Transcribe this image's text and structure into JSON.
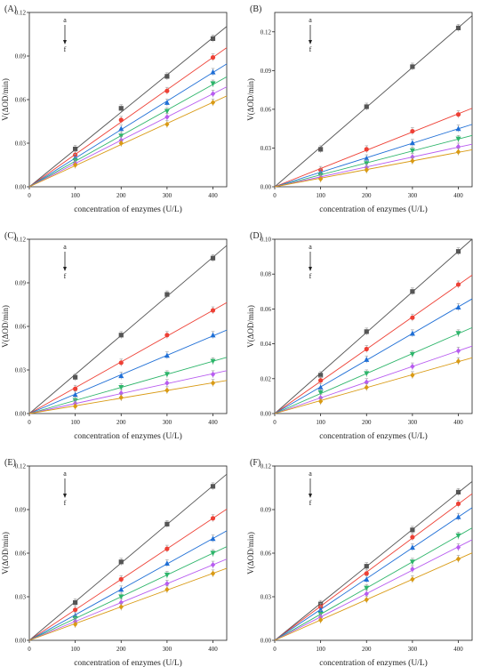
{
  "figure": {
    "colors": [
      "#555555",
      "#ee4035",
      "#1f6fd6",
      "#2db56a",
      "#b85cf0",
      "#d99a14"
    ],
    "marker_shapes": [
      "square",
      "circle",
      "triangle-up",
      "triangle-down",
      "diamond",
      "diamond"
    ]
  },
  "chart_data": [
    {
      "panel_label": "(A)",
      "type": "line",
      "xlabel": "concentration  of  enzymes  (U/L)",
      "ylabel": "V(ΔOD/min)",
      "xlim": [
        0,
        430
      ],
      "ylim": [
        0,
        0.12
      ],
      "xticks": [
        0,
        100,
        200,
        300,
        400
      ],
      "xtick_labels": [
        "0",
        "100",
        "200",
        "300",
        "400"
      ],
      "yticks": [
        0,
        0.03,
        0.06,
        0.09,
        0.12
      ],
      "ytick_labels": [
        "0.00",
        "0.03",
        "0.06",
        "0.09",
        "0.12"
      ],
      "annotation": {
        "top": "a",
        "bottom": "f"
      },
      "x": [
        100,
        200,
        300,
        400
      ],
      "series": [
        {
          "values": [
            0.026,
            0.054,
            0.076,
            0.102
          ]
        },
        {
          "values": [
            0.022,
            0.046,
            0.066,
            0.089
          ]
        },
        {
          "values": [
            0.02,
            0.04,
            0.058,
            0.079
          ]
        },
        {
          "values": [
            0.018,
            0.035,
            0.052,
            0.071
          ]
        },
        {
          "values": [
            0.016,
            0.032,
            0.048,
            0.064
          ]
        },
        {
          "values": [
            0.015,
            0.03,
            0.043,
            0.058
          ]
        }
      ]
    },
    {
      "panel_label": "(B)",
      "type": "line",
      "xlabel": "concentration  of  enzymes  (U/L)",
      "ylabel": "V(ΔOD/min)",
      "xlim": [
        0,
        430
      ],
      "ylim": [
        0,
        0.135
      ],
      "xticks": [
        0,
        100,
        200,
        300,
        400
      ],
      "xtick_labels": [
        "0",
        "100",
        "200",
        "300",
        "400"
      ],
      "yticks": [
        0,
        0.03,
        0.06,
        0.09,
        0.12
      ],
      "ytick_labels": [
        "0.00",
        "0.03",
        "0.06",
        "0.09",
        "0.12"
      ],
      "annotation": {
        "top": "a",
        "bottom": "f"
      },
      "x": [
        100,
        200,
        300,
        400
      ],
      "series": [
        {
          "values": [
            0.029,
            0.062,
            0.093,
            0.123
          ]
        },
        {
          "values": [
            0.013,
            0.029,
            0.043,
            0.056
          ]
        },
        {
          "values": [
            0.011,
            0.022,
            0.034,
            0.045
          ]
        },
        {
          "values": [
            0.009,
            0.018,
            0.028,
            0.037
          ]
        },
        {
          "values": [
            0.007,
            0.015,
            0.023,
            0.031
          ]
        },
        {
          "values": [
            0.006,
            0.013,
            0.02,
            0.027
          ]
        }
      ]
    },
    {
      "panel_label": "(C)",
      "type": "line",
      "xlabel": "concentration  of  enzymes  (U/L)",
      "ylabel": "V(ΔOD/min)",
      "xlim": [
        0,
        430
      ],
      "ylim": [
        0,
        0.12
      ],
      "xticks": [
        0,
        100,
        200,
        300,
        400
      ],
      "xtick_labels": [
        "0",
        "100",
        "200",
        "300",
        "400"
      ],
      "yticks": [
        0,
        0.03,
        0.06,
        0.09,
        0.12
      ],
      "ytick_labels": [
        "0.00",
        "0.03",
        "0.06",
        "0.09",
        "0.12"
      ],
      "annotation": {
        "top": "a",
        "bottom": "f"
      },
      "x": [
        100,
        200,
        300,
        400
      ],
      "series": [
        {
          "values": [
            0.025,
            0.054,
            0.082,
            0.107
          ]
        },
        {
          "values": [
            0.017,
            0.035,
            0.054,
            0.071
          ]
        },
        {
          "values": [
            0.013,
            0.026,
            0.04,
            0.054
          ]
        },
        {
          "values": [
            0.009,
            0.018,
            0.027,
            0.036
          ]
        },
        {
          "values": [
            0.007,
            0.014,
            0.021,
            0.027
          ]
        },
        {
          "values": [
            0.005,
            0.011,
            0.016,
            0.021
          ]
        }
      ]
    },
    {
      "panel_label": "(D)",
      "type": "line",
      "xlabel": "concentration  of  enzymes  (U/L)",
      "ylabel": "V(ΔOD/min)",
      "xlim": [
        0,
        430
      ],
      "ylim": [
        0,
        0.1
      ],
      "xticks": [
        0,
        100,
        200,
        300,
        400
      ],
      "xtick_labels": [
        "0",
        "100",
        "200",
        "300",
        "400"
      ],
      "yticks": [
        0,
        0.02,
        0.04,
        0.06,
        0.08,
        0.1
      ],
      "ytick_labels": [
        "0.00",
        "0.02",
        "0.04",
        "0.06",
        "0.08",
        "0.10"
      ],
      "annotation": {
        "top": "a",
        "bottom": "f"
      },
      "x": [
        100,
        200,
        300,
        400
      ],
      "series": [
        {
          "values": [
            0.022,
            0.047,
            0.07,
            0.093
          ]
        },
        {
          "values": [
            0.019,
            0.037,
            0.055,
            0.074
          ]
        },
        {
          "values": [
            0.015,
            0.031,
            0.046,
            0.061
          ]
        },
        {
          "values": [
            0.012,
            0.023,
            0.034,
            0.046
          ]
        },
        {
          "values": [
            0.009,
            0.018,
            0.027,
            0.036
          ]
        },
        {
          "values": [
            0.007,
            0.015,
            0.022,
            0.03
          ]
        }
      ]
    },
    {
      "panel_label": "(E)",
      "type": "line",
      "xlabel": "concentration  of  enzymes  (U/L)",
      "ylabel": "V(ΔOD/min)",
      "xlim": [
        0,
        430
      ],
      "ylim": [
        0,
        0.12
      ],
      "xticks": [
        0,
        100,
        200,
        300,
        400
      ],
      "xtick_labels": [
        "0",
        "100",
        "200",
        "300",
        "400"
      ],
      "yticks": [
        0,
        0.03,
        0.06,
        0.09,
        0.12
      ],
      "ytick_labels": [
        "0.00",
        "0.03",
        "0.06",
        "0.09",
        "0.12"
      ],
      "annotation": {
        "top": "a",
        "bottom": "f"
      },
      "x": [
        100,
        200,
        300,
        400
      ],
      "series": [
        {
          "values": [
            0.026,
            0.054,
            0.08,
            0.106
          ]
        },
        {
          "values": [
            0.021,
            0.042,
            0.063,
            0.084
          ]
        },
        {
          "values": [
            0.017,
            0.035,
            0.053,
            0.07
          ]
        },
        {
          "values": [
            0.015,
            0.03,
            0.045,
            0.06
          ]
        },
        {
          "values": [
            0.013,
            0.026,
            0.039,
            0.052
          ]
        },
        {
          "values": [
            0.011,
            0.023,
            0.035,
            0.046
          ]
        }
      ]
    },
    {
      "panel_label": "(F)",
      "type": "line",
      "xlabel": "concentration  of  enzymes  (U/L)",
      "ylabel": "V(ΔOD/min)",
      "xlim": [
        0,
        430
      ],
      "ylim": [
        0,
        0.12
      ],
      "xticks": [
        0,
        100,
        200,
        300,
        400
      ],
      "xtick_labels": [
        "0",
        "100",
        "200",
        "300",
        "400"
      ],
      "yticks": [
        0,
        0.03,
        0.06,
        0.09,
        0.12
      ],
      "ytick_labels": [
        "0.00",
        "0.03",
        "0.06",
        "0.09",
        "0.12"
      ],
      "annotation": {
        "top": "a",
        "bottom": "f"
      },
      "x": [
        100,
        200,
        300,
        400
      ],
      "series": [
        {
          "values": [
            0.025,
            0.051,
            0.076,
            0.102
          ]
        },
        {
          "values": [
            0.023,
            0.046,
            0.071,
            0.094
          ]
        },
        {
          "values": [
            0.021,
            0.042,
            0.064,
            0.085
          ]
        },
        {
          "values": [
            0.018,
            0.036,
            0.054,
            0.072
          ]
        },
        {
          "values": [
            0.016,
            0.032,
            0.049,
            0.064
          ]
        },
        {
          "values": [
            0.014,
            0.028,
            0.042,
            0.056
          ]
        }
      ]
    }
  ]
}
